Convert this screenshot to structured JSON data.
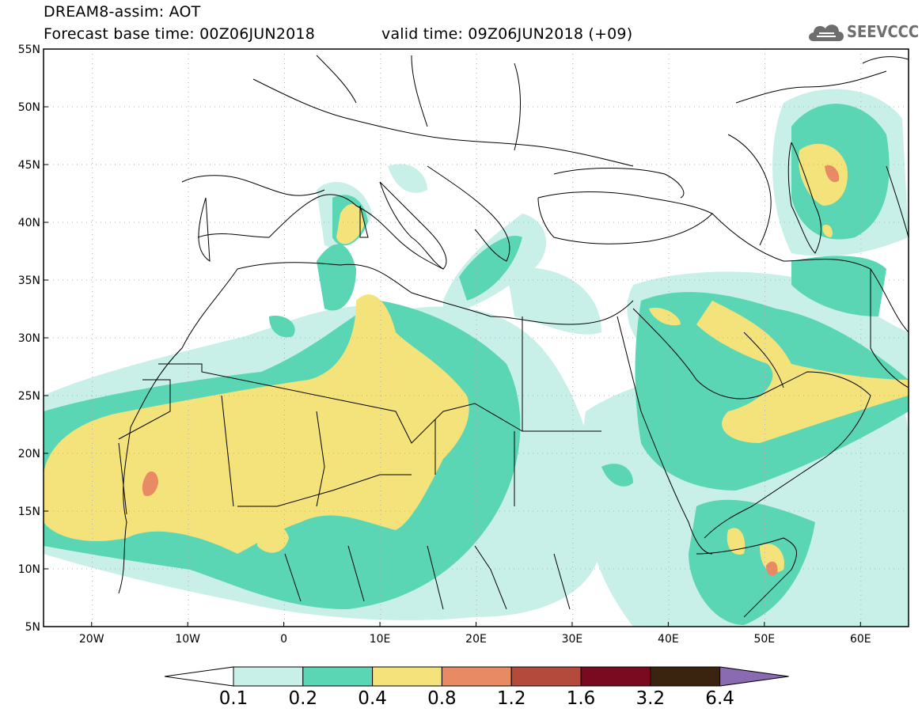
{
  "header": {
    "line1": "DREAM8-assim: AOT",
    "line2": "Forecast base time: 00Z06JUN2018",
    "line3": "valid time: 09Z06JUN2018 (+09)",
    "logo_text": "SEEVCCC"
  },
  "map": {
    "lon_range": [
      -25,
      65
    ],
    "lat_range": [
      5,
      55
    ],
    "lon_ticks": [
      "20W",
      "10W",
      "0",
      "10E",
      "20E",
      "30E",
      "40E",
      "50E",
      "60E"
    ],
    "lat_ticks": [
      "55N",
      "50N",
      "45N",
      "40N",
      "35N",
      "30N",
      "25N",
      "20N",
      "15N",
      "10N",
      "5N"
    ]
  },
  "colorbar": {
    "labels": [
      "0.1",
      "0.2",
      "0.4",
      "0.8",
      "1.2",
      "1.6",
      "3.2",
      "6.4"
    ],
    "colors": [
      "#ffffff",
      "#c8f0e8",
      "#5ad6b4",
      "#f4e37a",
      "#e88a64",
      "#b34a3c",
      "#7a0a20",
      "#3a2410",
      "#8a6ab0"
    ]
  }
}
